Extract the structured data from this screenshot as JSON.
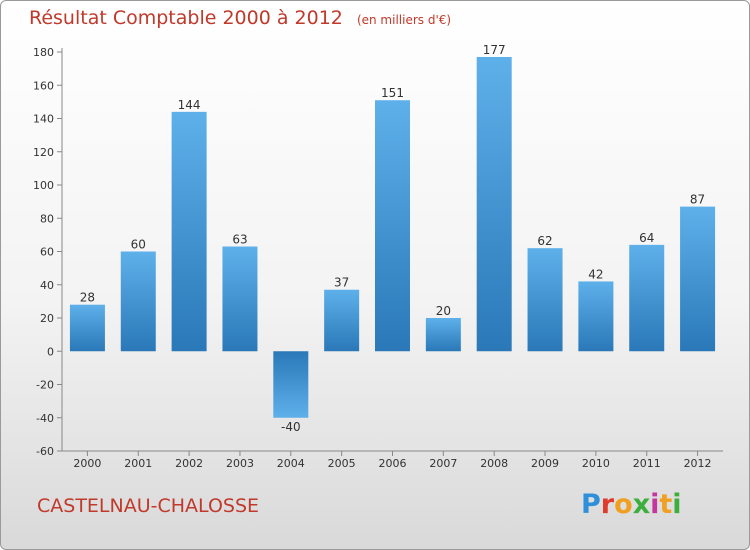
{
  "title": "Résultat Comptable 2000 à 2012",
  "unit": "(en milliers d'€)",
  "city": "CASTELNAU-CHALOSSE",
  "brand": {
    "p": "P",
    "r": "r",
    "o": "o",
    "x": "x",
    "i1": "i",
    "t": "t",
    "i2": "i"
  },
  "chart_data": {
    "type": "bar",
    "title": "Résultat Comptable 2000 à 2012",
    "subtitle": "(en milliers d'€)",
    "xlabel": "",
    "ylabel": "",
    "categories": [
      "2000",
      "2001",
      "2002",
      "2003",
      "2004",
      "2005",
      "2006",
      "2007",
      "2008",
      "2009",
      "2010",
      "2011",
      "2012"
    ],
    "values": [
      28,
      60,
      144,
      63,
      -40,
      37,
      151,
      20,
      177,
      62,
      42,
      64,
      87
    ],
    "ylim": [
      -60,
      180
    ],
    "yticks": [
      -60,
      -40,
      -20,
      0,
      20,
      40,
      60,
      80,
      100,
      120,
      140,
      160,
      180
    ],
    "grid": false,
    "colors": {
      "bar_top": "#5eb0ea",
      "bar_bottom": "#2a78b8",
      "axis": "#888888",
      "text": "#333333",
      "title": "#c0392b"
    }
  }
}
